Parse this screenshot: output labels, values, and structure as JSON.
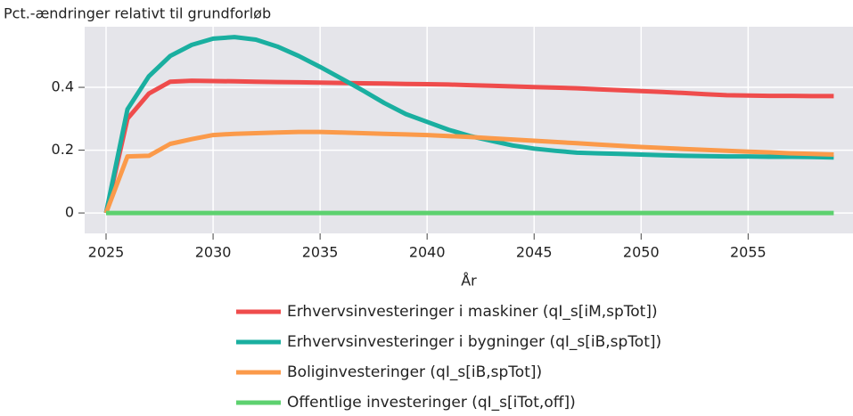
{
  "chart_data": {
    "type": "line",
    "y_label": "Pct.-ændringer relativt til grundforløb",
    "x_label": "År",
    "x": [
      2025,
      2026,
      2027,
      2028,
      2029,
      2030,
      2031,
      2032,
      2033,
      2034,
      2035,
      2036,
      2037,
      2038,
      2039,
      2040,
      2041,
      2042,
      2043,
      2044,
      2045,
      2046,
      2047,
      2048,
      2049,
      2050,
      2051,
      2052,
      2053,
      2054,
      2055,
      2056,
      2057,
      2058,
      2059
    ],
    "series": [
      {
        "name": "Erhvervsinvesteringer i maskiner (qI_s[iM,spTot])",
        "color": "#ef4c4c",
        "values": [
          0,
          0.3,
          0.38,
          0.418,
          0.421,
          0.42,
          0.419,
          0.418,
          0.417,
          0.416,
          0.415,
          0.414,
          0.413,
          0.412,
          0.411,
          0.41,
          0.409,
          0.407,
          0.405,
          0.403,
          0.401,
          0.399,
          0.397,
          0.394,
          0.391,
          0.388,
          0.385,
          0.382,
          0.378,
          0.375,
          0.374,
          0.373,
          0.373,
          0.372,
          0.372
        ]
      },
      {
        "name": "Erhvervsinvesteringer i bygninger (qI_s[iB,spTot])",
        "color": "#1aafa0",
        "values": [
          0,
          0.33,
          0.435,
          0.5,
          0.535,
          0.555,
          0.56,
          0.552,
          0.53,
          0.5,
          0.465,
          0.428,
          0.39,
          0.35,
          0.315,
          0.29,
          0.265,
          0.245,
          0.23,
          0.215,
          0.205,
          0.198,
          0.192,
          0.19,
          0.188,
          0.186,
          0.184,
          0.182,
          0.181,
          0.18,
          0.18,
          0.179,
          0.179,
          0.178,
          0.177
        ]
      },
      {
        "name": "Boliginvesteringer (qI_s[iB,spTot])",
        "color": "#fb9a4a",
        "values": [
          0,
          0.18,
          0.182,
          0.22,
          0.235,
          0.248,
          0.252,
          0.254,
          0.256,
          0.258,
          0.258,
          0.256,
          0.254,
          0.252,
          0.25,
          0.248,
          0.245,
          0.242,
          0.238,
          0.234,
          0.23,
          0.226,
          0.222,
          0.218,
          0.214,
          0.21,
          0.207,
          0.204,
          0.201,
          0.198,
          0.195,
          0.193,
          0.19,
          0.188,
          0.186
        ]
      },
      {
        "name": "Offentlige investeringer (qI_s[iTot,off])",
        "color": "#5dd16f",
        "values": [
          0,
          0,
          0,
          0,
          0,
          0,
          0,
          0,
          0,
          0,
          0,
          0,
          0,
          0,
          0,
          0,
          0,
          0,
          0,
          0,
          0,
          0,
          0,
          0,
          0,
          0,
          0,
          0,
          0,
          0,
          0,
          0,
          0,
          0,
          0
        ]
      }
    ],
    "xlim": [
      2024,
      2059.9
    ],
    "xticks": [
      2025,
      2030,
      2035,
      2040,
      2045,
      2050,
      2055
    ],
    "ylim": [
      -0.065,
      0.593
    ],
    "yticks": [
      0,
      0.2,
      0.4
    ],
    "grid": true,
    "legend": "bottom"
  }
}
